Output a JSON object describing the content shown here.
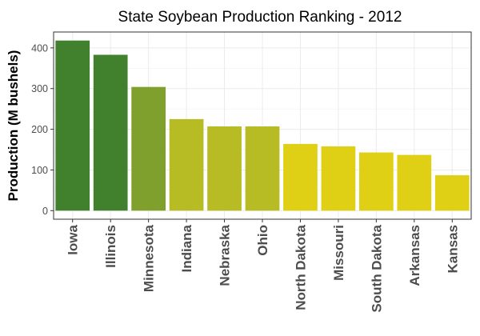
{
  "chart_data": {
    "type": "bar",
    "title": "State Soybean Production Ranking - 2012",
    "xlabel": "",
    "ylabel": "Production (M bushels)",
    "ylim": [
      -21,
      439
    ],
    "yticks": [
      0,
      100,
      200,
      300,
      400
    ],
    "grid": true,
    "legend": "none",
    "categories": [
      "Iowa",
      "Illinois",
      "Minnesota",
      "Indiana",
      "Nebraska",
      "Ohio",
      "North Dakota",
      "Missouri",
      "South Dakota",
      "Arkansas",
      "Kansas"
    ],
    "values": [
      418,
      383,
      304,
      225,
      207,
      207,
      164,
      158,
      143,
      137,
      87
    ],
    "colors": [
      "#41802c",
      "#41802c",
      "#7fa02c",
      "#b7bb24",
      "#b7bb24",
      "#b7bb24",
      "#e0d015",
      "#e0d015",
      "#e0d015",
      "#e0d015",
      "#e0d015"
    ]
  }
}
